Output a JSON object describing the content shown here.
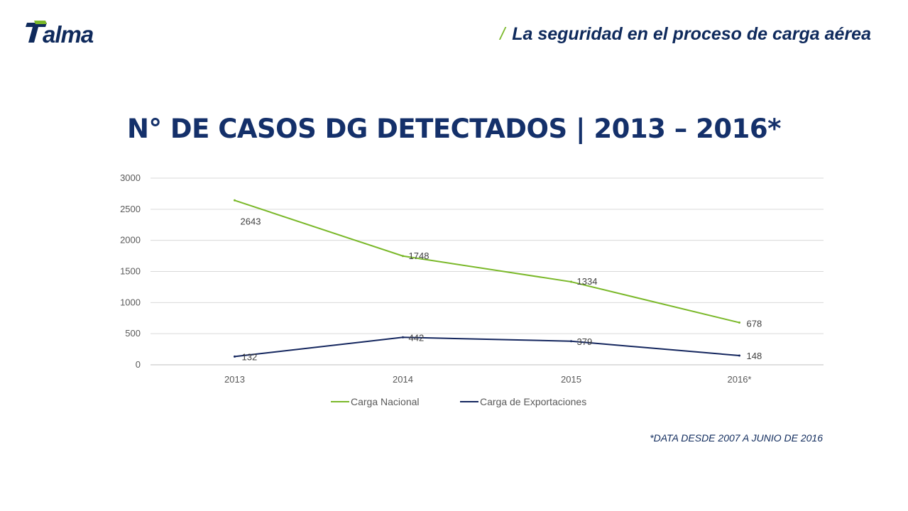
{
  "header": {
    "logo_text": "Talma",
    "slash": "/",
    "title": "La seguridad en el proceso de carga aérea"
  },
  "colors": {
    "brand_navy": "#0f2a5c",
    "brand_green": "#7ab829",
    "series_nacional": "#7ab829",
    "series_exportaciones": "#14265e"
  },
  "chart_data": {
    "type": "line",
    "title": "N° DE CASOS DG DETECTADOS | 2013 – 2016*",
    "categories": [
      "2013",
      "2014",
      "2015",
      "2016*"
    ],
    "series": [
      {
        "name": "Carga Nacional",
        "values": [
          2643,
          1748,
          1334,
          678
        ]
      },
      {
        "name": "Carga de Exportaciones",
        "values": [
          132,
          442,
          379,
          148
        ]
      }
    ],
    "ylim": [
      0,
      3000
    ],
    "yticks": [
      0,
      500,
      1000,
      1500,
      2000,
      2500,
      3000
    ],
    "grid": true,
    "legend_position": "bottom",
    "data_labels": true
  },
  "footnote": "*DATA DESDE 2007 A JUNIO DE 2016"
}
